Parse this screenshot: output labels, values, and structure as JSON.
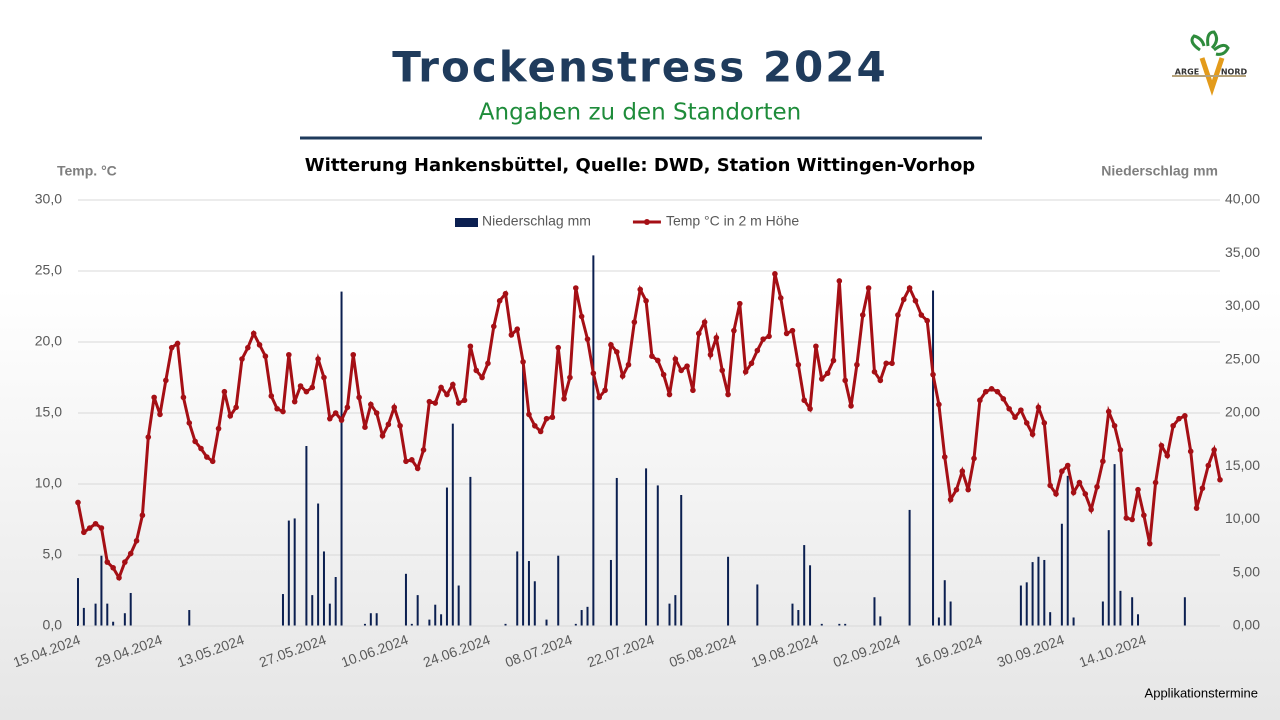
{
  "header": {
    "title": "Trockenstress 2024",
    "subtitle": "Angaben zu den Standorten",
    "logo": [
      "ARGE",
      "NORD"
    ]
  },
  "chart_data": {
    "type": "bar-line",
    "title": "Witterung Hankensbüttel, Quelle: DWD, Station Wittingen-Vorhop",
    "y_label": "Temp. °C",
    "y2_label": "Niederschlag mm",
    "categories": [
      "15.04.2024",
      null,
      null,
      null,
      null,
      null,
      null,
      null,
      null,
      null,
      null,
      null,
      null,
      null,
      "29.04.2024",
      null,
      null,
      null,
      null,
      null,
      null,
      null,
      null,
      null,
      null,
      null,
      null,
      null,
      "13.05.2024",
      null,
      null,
      null,
      null,
      null,
      null,
      null,
      null,
      null,
      null,
      null,
      null,
      null,
      "27.05.2024",
      null,
      null,
      null,
      null,
      null,
      null,
      null,
      null,
      null,
      null,
      null,
      null,
      null,
      "10.06.2024",
      null,
      null,
      null,
      null,
      null,
      null,
      null,
      null,
      null,
      null,
      null,
      null,
      null,
      "24.06.2024",
      null,
      null,
      null,
      null,
      null,
      null,
      null,
      null,
      null,
      null,
      null,
      null,
      null,
      "08.07.2024",
      null,
      null,
      null,
      null,
      null,
      null,
      null,
      null,
      null,
      null,
      null,
      null,
      null,
      "22.07.2024",
      null,
      null,
      null,
      null,
      null,
      null,
      null,
      null,
      null,
      null,
      null,
      null,
      null,
      "05.08.2024",
      null,
      null,
      null,
      null,
      null,
      null,
      null,
      null,
      null,
      null,
      null,
      null,
      null,
      "19.08.2024",
      null,
      null,
      null,
      null,
      null,
      null,
      null,
      null,
      null,
      null,
      null,
      null,
      null,
      "02.09.2024",
      null,
      null,
      null,
      null,
      null,
      null,
      null,
      null,
      null,
      null,
      null,
      null,
      null,
      "16.09.2024",
      null,
      null,
      null,
      null,
      null,
      null,
      null,
      null,
      null,
      null,
      null,
      null,
      null,
      "30.09.2024",
      null,
      null,
      null,
      null,
      null,
      null,
      null,
      null,
      null,
      null,
      null,
      null,
      null,
      "14.10.2024",
      null,
      null,
      null,
      null,
      null,
      null,
      null,
      null,
      null,
      null,
      null,
      null,
      null
    ],
    "series": [
      {
        "name": "Niederschlag mm",
        "type": "bar",
        "axis": "y2",
        "color": "#0b1f50",
        "values": [
          4.5,
          1.7,
          0,
          2.1,
          6.6,
          2.1,
          0.4,
          0,
          1.2,
          3.1,
          0,
          0,
          0,
          0,
          0,
          0,
          0,
          0,
          0,
          1.5,
          0,
          0,
          0,
          0,
          0,
          0,
          0,
          0,
          0,
          0,
          0,
          0,
          0,
          0,
          0,
          3.0,
          9.9,
          10.1,
          0,
          16.9,
          2.9,
          11.5,
          7.0,
          2.1,
          4.6,
          31.4,
          0,
          0,
          0,
          0.2,
          1.2,
          1.2,
          0,
          0,
          0,
          0,
          4.9,
          0.2,
          2.9,
          0,
          0.6,
          2.0,
          1.1,
          13.0,
          19.0,
          3.8,
          0,
          14.0,
          0,
          0,
          0,
          0,
          0,
          0.2,
          0,
          7.0,
          25.0,
          6.1,
          4.2,
          0,
          0.6,
          0,
          6.6,
          0,
          0,
          0.2,
          1.5,
          1.8,
          34.8,
          0,
          0,
          6.2,
          13.9,
          0,
          0,
          0,
          0,
          14.8,
          0,
          13.2,
          0,
          2.1,
          2.9,
          12.3,
          0,
          0,
          0,
          0,
          0,
          0,
          0,
          6.5,
          0,
          0,
          0,
          0,
          3.9,
          0,
          0,
          0,
          0,
          0,
          2.1,
          1.5,
          7.6,
          5.7,
          0,
          0.2,
          0,
          0,
          0.2,
          0.2,
          0,
          0,
          0,
          0,
          2.7,
          0.9,
          0,
          0,
          0,
          0,
          10.9,
          0,
          0,
          0,
          31.5,
          0.8,
          4.3,
          2.3,
          0,
          0,
          0,
          0,
          0,
          0,
          0,
          0,
          0,
          0,
          0,
          3.8,
          4.1,
          6.0,
          6.5,
          6.2,
          1.3,
          0,
          9.6,
          14.1,
          0.8,
          0,
          0,
          0,
          0,
          2.3,
          9.0,
          15.2,
          3.3,
          0,
          2.7,
          1.1,
          0,
          0,
          0,
          0,
          0,
          0,
          0,
          2.7,
          0,
          0,
          0,
          0,
          0,
          0
        ]
      },
      {
        "name": "Temp °C in 2 m Höhe",
        "type": "line",
        "axis": "y",
        "color": "#a50f15",
        "values": [
          8.7,
          6.6,
          6.9,
          7.2,
          6.9,
          4.5,
          4.1,
          3.4,
          4.5,
          5.1,
          6.0,
          7.8,
          13.3,
          16.1,
          14.9,
          17.3,
          19.6,
          19.9,
          16.1,
          14.3,
          13.0,
          12.5,
          11.9,
          11.6,
          13.9,
          16.5,
          14.8,
          15.4,
          18.8,
          19.6,
          20.6,
          19.8,
          19.0,
          16.2,
          15.3,
          15.1,
          19.1,
          15.8,
          16.9,
          16.5,
          16.8,
          18.8,
          17.5,
          14.6,
          15.0,
          14.5,
          15.4,
          19.1,
          16.1,
          14.0,
          15.6,
          15.0,
          13.4,
          14.2,
          15.4,
          14.1,
          11.6,
          11.7,
          11.1,
          12.4,
          15.8,
          15.7,
          16.8,
          16.3,
          17.0,
          15.7,
          15.9,
          19.7,
          18.0,
          17.5,
          18.5,
          21.1,
          22.9,
          23.4,
          20.5,
          20.9,
          18.6,
          14.9,
          14.1,
          13.7,
          14.6,
          14.7,
          19.6,
          16.0,
          17.5,
          23.8,
          21.8,
          20.2,
          17.8,
          16.1,
          16.6,
          19.8,
          19.3,
          17.6,
          18.4,
          21.4,
          23.7,
          22.9,
          19.0,
          18.7,
          17.7,
          16.3,
          18.8,
          18.0,
          18.3,
          16.6,
          20.6,
          21.4,
          19.1,
          20.3,
          18.0,
          16.3,
          20.8,
          22.7,
          17.9,
          18.5,
          19.4,
          20.2,
          20.4,
          24.8,
          23.1,
          20.6,
          20.8,
          18.4,
          15.9,
          15.3,
          19.7,
          17.4,
          17.8,
          18.7,
          24.3,
          17.3,
          15.5,
          18.4,
          21.9,
          23.8,
          17.9,
          17.3,
          18.5,
          18.5,
          21.9,
          23.0,
          23.8,
          22.9,
          21.9,
          21.5,
          17.7,
          15.6,
          11.9,
          8.9,
          9.6,
          10.9,
          9.6,
          11.8,
          15.9,
          16.5,
          16.7,
          16.5,
          16.0,
          15.3,
          14.7,
          15.2,
          14.3,
          13.5,
          15.4,
          14.3,
          9.9,
          9.3,
          10.9,
          11.3,
          9.4,
          10.1,
          9.3,
          8.2,
          9.8,
          11.6,
          15.1,
          14.1,
          12.4,
          7.6,
          7.5,
          9.6,
          7.8,
          5.8,
          10.1,
          12.7,
          12.0,
          14.1,
          14.6,
          14.8,
          12.3,
          8.3,
          9.7,
          11.3,
          12.4,
          10.3
        ]
      }
    ],
    "ylim": [
      0,
      30
    ],
    "yticks": [
      {
        "value": 0,
        "label": "0,0"
      },
      {
        "value": 5,
        "label": "5,0"
      },
      {
        "value": 10,
        "label": "10,0"
      },
      {
        "value": 15,
        "label": "15,0"
      },
      {
        "value": 20,
        "label": "20,0"
      },
      {
        "value": 25,
        "label": "25,0"
      },
      {
        "value": 30,
        "label": "30,0"
      }
    ],
    "y2lim": [
      0,
      40
    ],
    "y2ticks": [
      {
        "value": 0,
        "label": "0,00"
      },
      {
        "value": 5,
        "label": "5,00"
      },
      {
        "value": 10,
        "label": "10,00"
      },
      {
        "value": 15,
        "label": "15,00"
      },
      {
        "value": 20,
        "label": "20,00"
      },
      {
        "value": 25,
        "label": "25,00"
      },
      {
        "value": 30,
        "label": "30,00"
      },
      {
        "value": 35,
        "label": "35,00"
      },
      {
        "value": 40,
        "label": "40,00"
      }
    ],
    "grid": true,
    "legend": "top"
  },
  "footer": {
    "note": "Applikationstermine"
  }
}
